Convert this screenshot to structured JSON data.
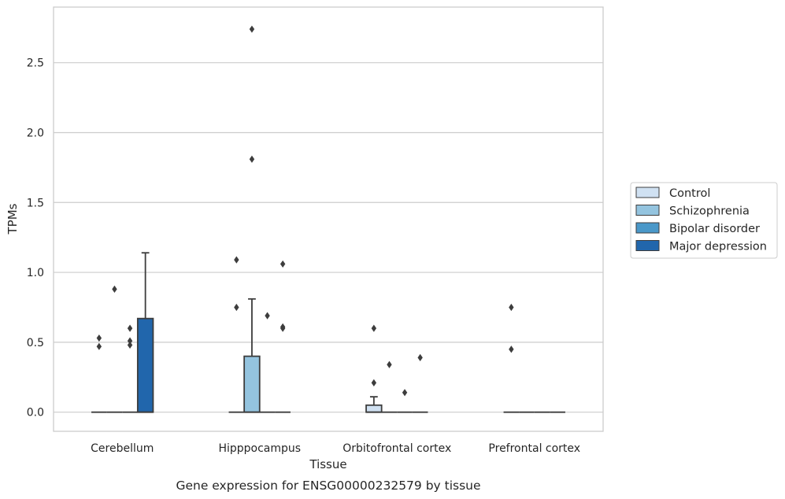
{
  "chart_data": {
    "type": "box",
    "xlabel": "Tissue",
    "ylabel": "TPMs",
    "caption": "Gene expression for ENSG00000232579 by tissue",
    "categories": [
      "Cerebellum",
      "Hipppocampus",
      "Orbitofrontal cortex",
      "Prefrontal cortex"
    ],
    "ylim": [
      -0.137,
      2.898
    ],
    "yticks": [
      0.0,
      0.5,
      1.0,
      1.5,
      2.0,
      2.5
    ],
    "ytick_labels": [
      "0.0",
      "0.5",
      "1.0",
      "1.5",
      "2.0",
      "2.5"
    ],
    "grid": true,
    "legend_position": "center-right, outside plot",
    "series": [
      {
        "name": "Control",
        "color": "#d0e1f2",
        "boxes": [
          {
            "q1": 0,
            "median": 0,
            "q3": 0,
            "whisker_low": 0,
            "whisker_high": 0,
            "outliers": [
              0.53,
              0.47
            ]
          },
          {
            "q1": 0,
            "median": 0,
            "q3": 0,
            "whisker_low": 0,
            "whisker_high": 0,
            "outliers": [
              1.09,
              0.75
            ]
          },
          {
            "q1": 0,
            "median": 0,
            "q3": 0.05,
            "whisker_low": 0,
            "whisker_high": 0.11,
            "outliers": [
              0.6,
              0.21
            ]
          },
          {
            "q1": 0,
            "median": 0,
            "q3": 0,
            "whisker_low": 0,
            "whisker_high": 0,
            "outliers": [
              0.75,
              0.45
            ]
          }
        ]
      },
      {
        "name": "Schizophrenia",
        "color": "#94c4df",
        "boxes": [
          {
            "q1": 0,
            "median": 0,
            "q3": 0,
            "whisker_low": 0,
            "whisker_high": 0,
            "outliers": [
              0.88
            ]
          },
          {
            "q1": 0,
            "median": 0,
            "q3": 0.4,
            "whisker_low": 0,
            "whisker_high": 0.81,
            "outliers": [
              2.74,
              1.81
            ]
          },
          {
            "q1": 0,
            "median": 0,
            "q3": 0,
            "whisker_low": 0,
            "whisker_high": 0,
            "outliers": [
              0.34
            ]
          },
          {
            "q1": 0,
            "median": 0,
            "q3": 0,
            "whisker_low": 0,
            "whisker_high": 0,
            "outliers": []
          }
        ]
      },
      {
        "name": "Bipolar disorder",
        "color": "#4a98c9",
        "boxes": [
          {
            "q1": 0,
            "median": 0,
            "q3": 0,
            "whisker_low": 0,
            "whisker_high": 0,
            "outliers": [
              0.6,
              0.51,
              0.48
            ]
          },
          {
            "q1": 0,
            "median": 0,
            "q3": 0,
            "whisker_low": 0,
            "whisker_high": 0,
            "outliers": [
              0.69
            ]
          },
          {
            "q1": 0,
            "median": 0,
            "q3": 0,
            "whisker_low": 0,
            "whisker_high": 0,
            "outliers": [
              0.14
            ]
          },
          {
            "q1": 0,
            "median": 0,
            "q3": 0,
            "whisker_low": 0,
            "whisker_high": 0,
            "outliers": []
          }
        ]
      },
      {
        "name": "Major depression",
        "color": "#2166ac",
        "boxes": [
          {
            "q1": 0,
            "median": 0,
            "q3": 0.67,
            "whisker_low": 0,
            "whisker_high": 1.14,
            "outliers": []
          },
          {
            "q1": 0,
            "median": 0,
            "q3": 0,
            "whisker_low": 0,
            "whisker_high": 0,
            "outliers": [
              1.06,
              0.61,
              0.6
            ]
          },
          {
            "q1": 0,
            "median": 0,
            "q3": 0,
            "whisker_low": 0,
            "whisker_high": 0,
            "outliers": [
              0.39
            ]
          },
          {
            "q1": 0,
            "median": 0,
            "q3": 0,
            "whisker_low": 0,
            "whisker_high": 0,
            "outliers": []
          }
        ]
      }
    ]
  }
}
